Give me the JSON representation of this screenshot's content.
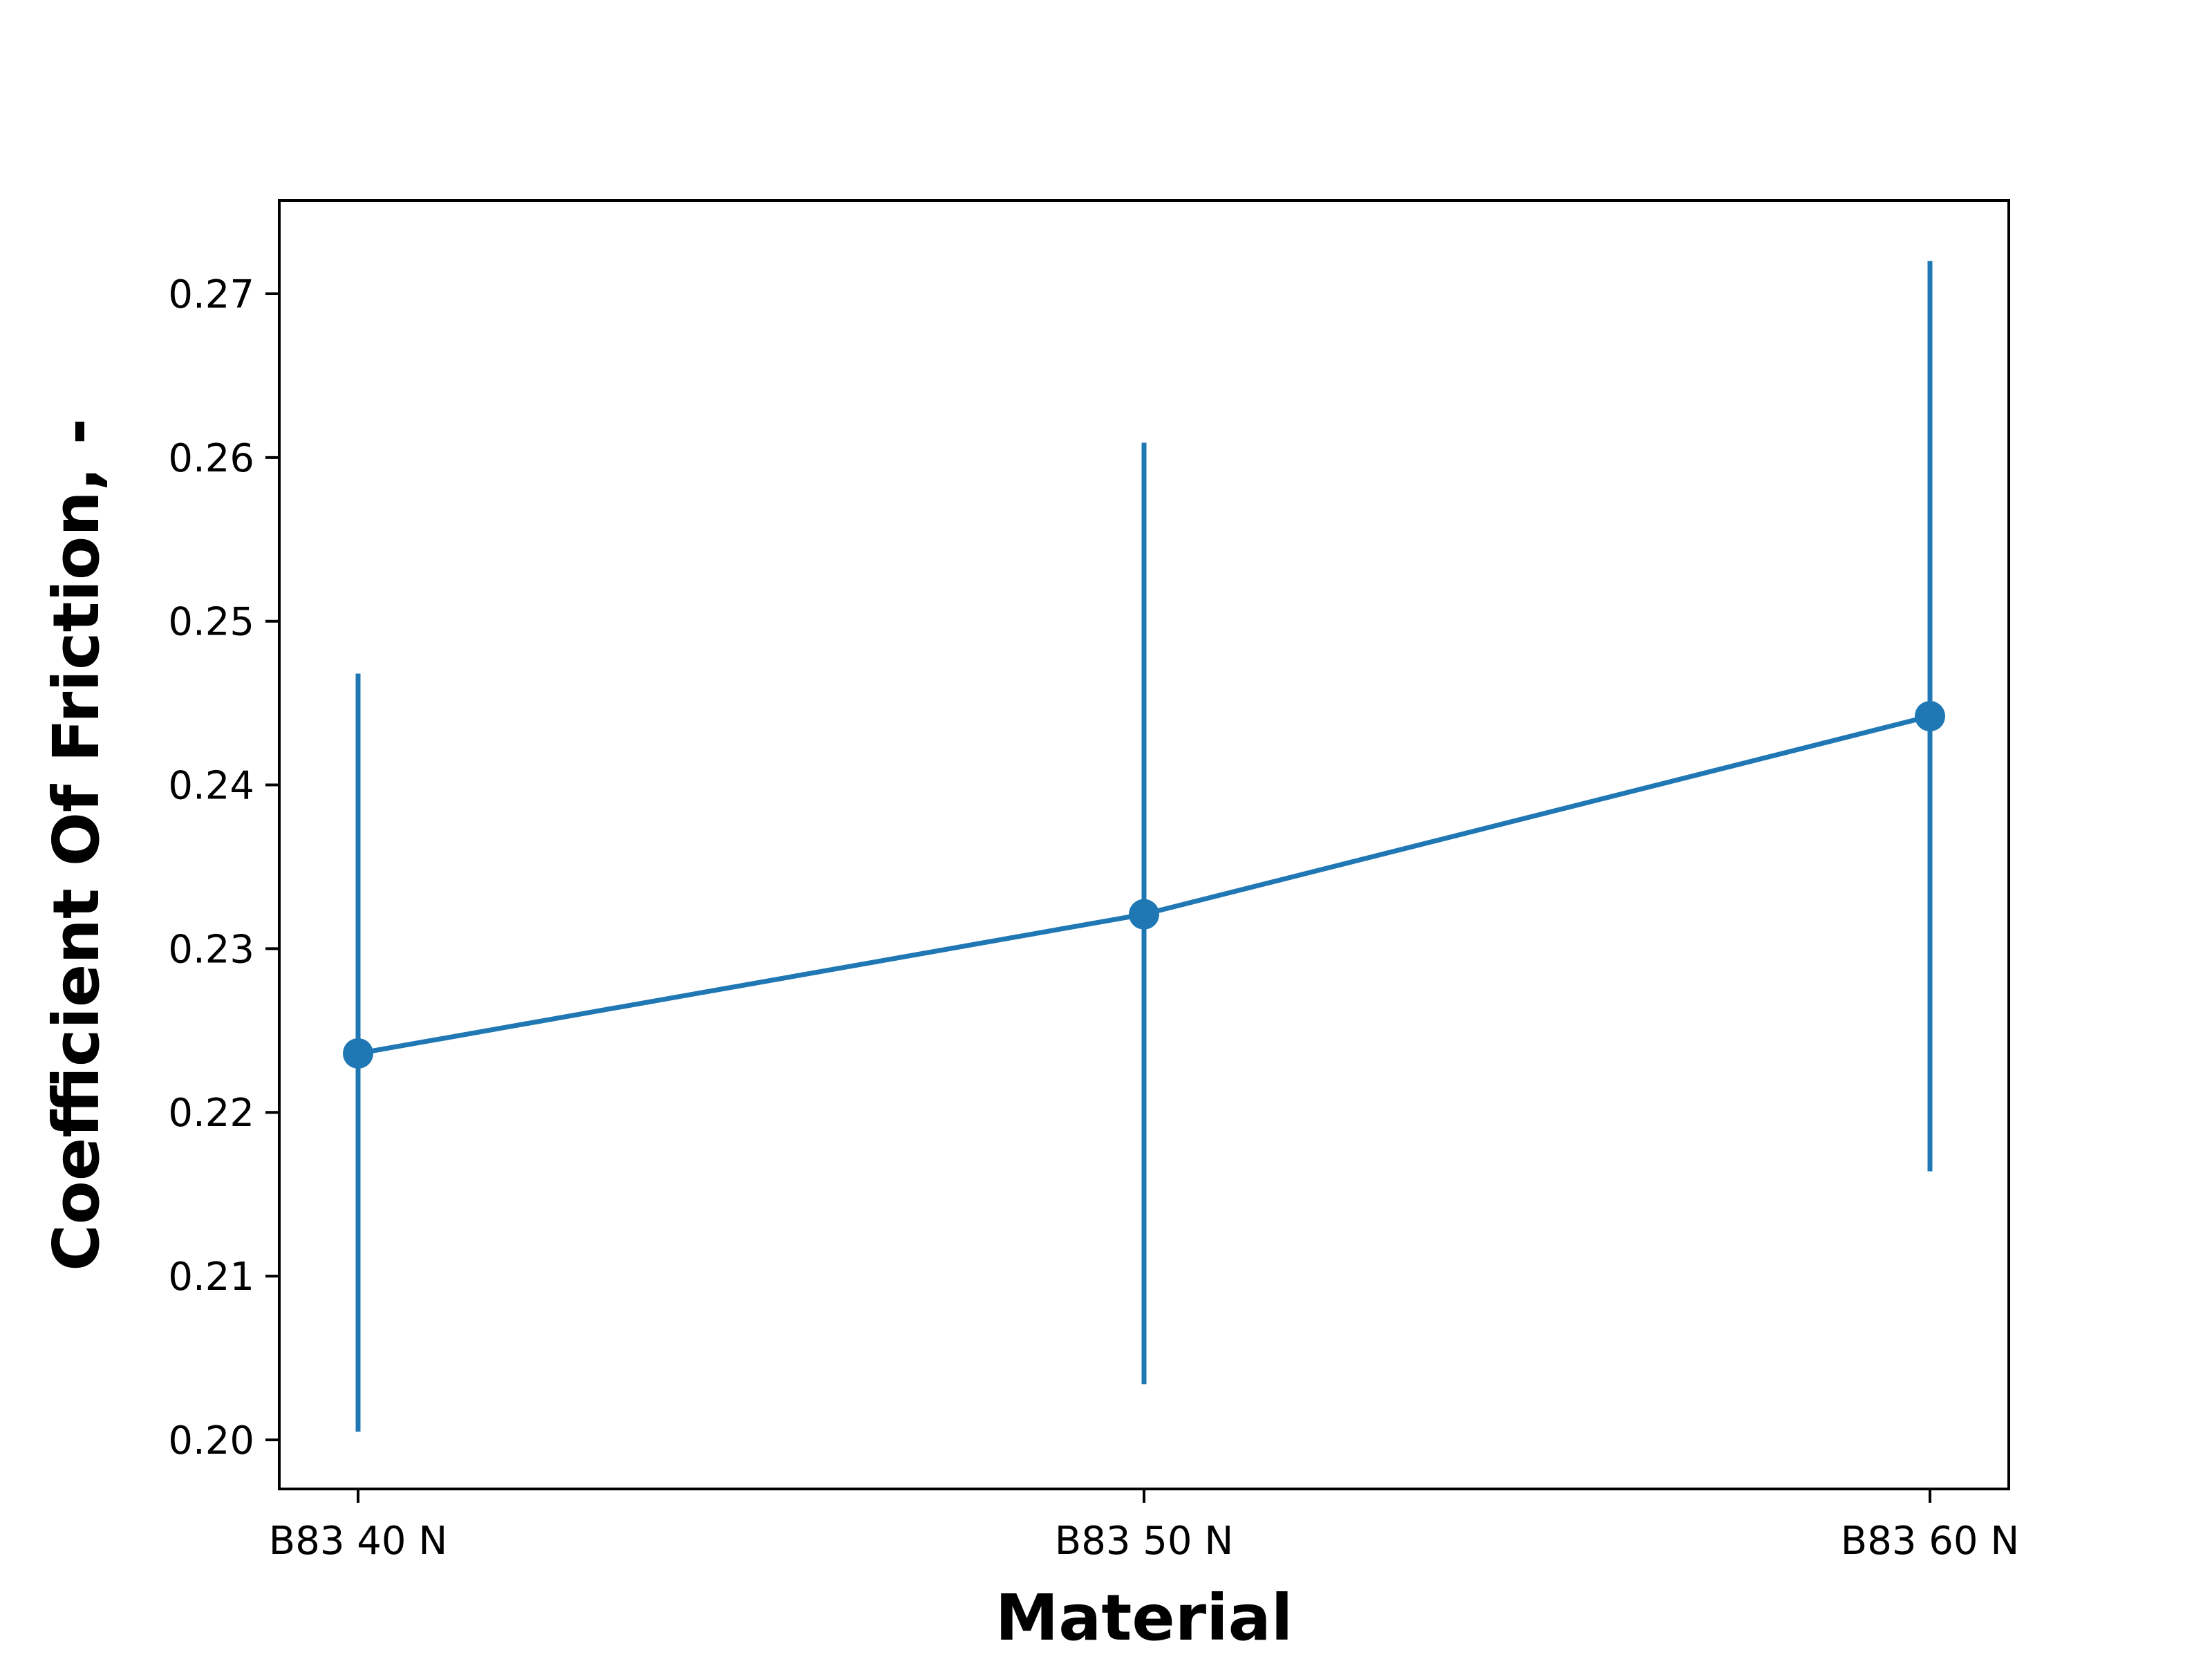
{
  "chart_data": {
    "type": "line",
    "xlabel": "Material",
    "ylabel": "Coefficient Of Friction, -",
    "categories": [
      "B83 40 N",
      "B83 50 N",
      "B83 60 N"
    ],
    "series": [
      {
        "values": [
          0.2236,
          0.2321,
          0.2442
        ],
        "error_low": [
          0.2005,
          0.2034,
          0.2164
        ],
        "error_high": [
          0.2468,
          0.2609,
          0.272
        ],
        "marker": "circle"
      }
    ],
    "ylim": [
      0.197,
      0.2757
    ],
    "yticks": [
      0.2,
      0.21,
      0.22,
      0.23,
      0.24,
      0.25,
      0.26,
      0.27
    ],
    "ytick_labels": [
      "0.20",
      "0.21",
      "0.22",
      "0.23",
      "0.24",
      "0.25",
      "0.26",
      "0.27"
    ],
    "grid": false,
    "legend": false,
    "colors": {
      "series": "#1f77b4",
      "axes": "#000000",
      "background": "#ffffff"
    }
  }
}
